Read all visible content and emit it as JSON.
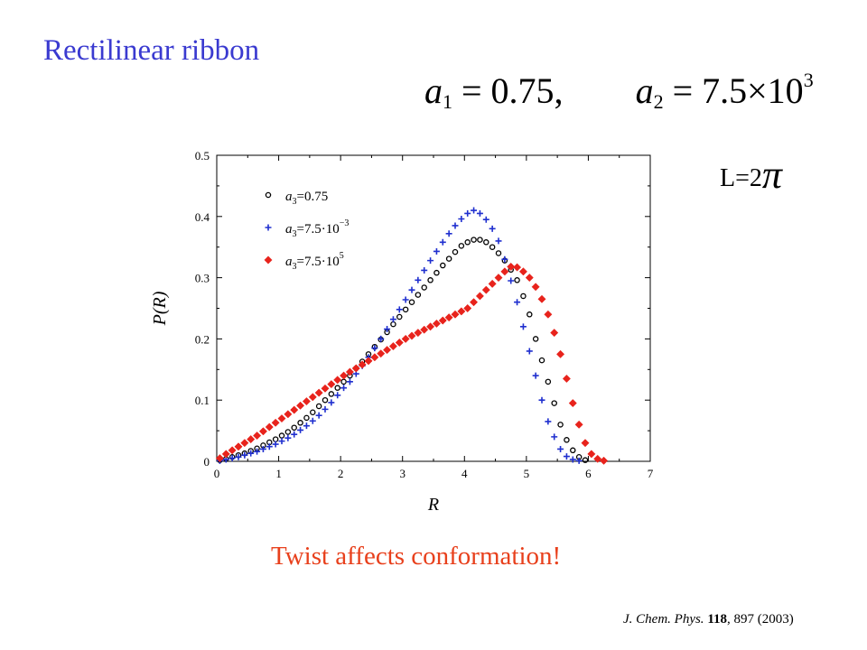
{
  "slide": {
    "title": "Rectilinear ribbon",
    "params": {
      "a1_symbol": "a",
      "a1_sub": "1",
      "a1_value": "= 0.75,",
      "a2_symbol": "a",
      "a2_sub": "2",
      "a2_value": "= 7.5×10",
      "a2_exp": "3"
    },
    "length_label": "L=2",
    "length_symbol": "π",
    "conclusion": "Twist affects conformation!",
    "citation": {
      "journal": "J. Chem. Phys.",
      "volume": "118",
      "rest": ", 897 (2003)"
    }
  },
  "chart_data": {
    "type": "scatter",
    "xlabel": "R",
    "ylabel": "P(R)",
    "xlim": [
      0,
      7
    ],
    "ylim": [
      0,
      0.5
    ],
    "xticks": [
      "0",
      "1",
      "2",
      "3",
      "4",
      "5",
      "6",
      "7"
    ],
    "yticks": [
      "0",
      "0.1",
      "0.2",
      "0.3",
      "0.4",
      "0.5"
    ],
    "legend_placement": "top-left",
    "series": [
      {
        "name": "a3=0.75",
        "legend": {
          "sym": "a",
          "sub": "3",
          "val": "=0.75",
          "exp": ""
        },
        "marker": "circle",
        "color": "#000000",
        "x": [
          0.05,
          0.15,
          0.25,
          0.35,
          0.45,
          0.55,
          0.65,
          0.75,
          0.85,
          0.95,
          1.05,
          1.15,
          1.25,
          1.35,
          1.45,
          1.55,
          1.65,
          1.75,
          1.85,
          1.95,
          2.05,
          2.15,
          2.25,
          2.35,
          2.45,
          2.55,
          2.65,
          2.75,
          2.85,
          2.95,
          3.05,
          3.15,
          3.25,
          3.35,
          3.45,
          3.55,
          3.65,
          3.75,
          3.85,
          3.95,
          4.05,
          4.15,
          4.25,
          4.35,
          4.45,
          4.55,
          4.65,
          4.75,
          4.85,
          4.95,
          5.05,
          5.15,
          5.25,
          5.35,
          5.45,
          5.55,
          5.65,
          5.75,
          5.85,
          5.95
        ],
        "y": [
          0.002,
          0.004,
          0.007,
          0.01,
          0.013,
          0.017,
          0.021,
          0.026,
          0.031,
          0.036,
          0.042,
          0.048,
          0.055,
          0.063,
          0.071,
          0.08,
          0.09,
          0.1,
          0.11,
          0.12,
          0.13,
          0.14,
          0.152,
          0.163,
          0.175,
          0.187,
          0.199,
          0.211,
          0.224,
          0.236,
          0.248,
          0.26,
          0.272,
          0.284,
          0.296,
          0.308,
          0.32,
          0.331,
          0.342,
          0.352,
          0.358,
          0.362,
          0.362,
          0.358,
          0.35,
          0.34,
          0.328,
          0.313,
          0.296,
          0.27,
          0.24,
          0.2,
          0.165,
          0.13,
          0.095,
          0.06,
          0.035,
          0.018,
          0.007,
          0.002
        ]
      },
      {
        "name": "a3=7.5·10^-3",
        "legend": {
          "sym": "a",
          "sub": "3",
          "val": "=7.5·10",
          "exp": "−3"
        },
        "marker": "plus",
        "color": "#1f2fcf",
        "x": [
          0.05,
          0.15,
          0.25,
          0.35,
          0.45,
          0.55,
          0.65,
          0.75,
          0.85,
          0.95,
          1.05,
          1.15,
          1.25,
          1.35,
          1.45,
          1.55,
          1.65,
          1.75,
          1.85,
          1.95,
          2.05,
          2.15,
          2.25,
          2.35,
          2.45,
          2.55,
          2.65,
          2.75,
          2.85,
          2.95,
          3.05,
          3.15,
          3.25,
          3.35,
          3.45,
          3.55,
          3.65,
          3.75,
          3.85,
          3.95,
          4.05,
          4.15,
          4.25,
          4.35,
          4.45,
          4.55,
          4.65,
          4.75,
          4.85,
          4.95,
          5.05,
          5.15,
          5.25,
          5.35,
          5.45,
          5.55,
          5.65,
          5.75,
          5.85
        ],
        "y": [
          0.001,
          0.003,
          0.005,
          0.007,
          0.01,
          0.013,
          0.016,
          0.02,
          0.024,
          0.028,
          0.033,
          0.038,
          0.044,
          0.051,
          0.058,
          0.066,
          0.075,
          0.085,
          0.096,
          0.108,
          0.12,
          0.13,
          0.143,
          0.156,
          0.17,
          0.185,
          0.2,
          0.216,
          0.232,
          0.248,
          0.264,
          0.28,
          0.296,
          0.312,
          0.328,
          0.343,
          0.358,
          0.372,
          0.385,
          0.396,
          0.405,
          0.41,
          0.405,
          0.395,
          0.38,
          0.36,
          0.33,
          0.295,
          0.26,
          0.22,
          0.18,
          0.14,
          0.1,
          0.065,
          0.04,
          0.02,
          0.008,
          0.003,
          0.001
        ]
      },
      {
        "name": "a3=7.5·10^5",
        "legend": {
          "sym": "a",
          "sub": "3",
          "val": "=7.5·10",
          "exp": "5"
        },
        "marker": "diamond",
        "color": "#e8231c",
        "x": [
          0.05,
          0.15,
          0.25,
          0.35,
          0.45,
          0.55,
          0.65,
          0.75,
          0.85,
          0.95,
          1.05,
          1.15,
          1.25,
          1.35,
          1.45,
          1.55,
          1.65,
          1.75,
          1.85,
          1.95,
          2.05,
          2.15,
          2.25,
          2.35,
          2.45,
          2.55,
          2.65,
          2.75,
          2.85,
          2.95,
          3.05,
          3.15,
          3.25,
          3.35,
          3.45,
          3.55,
          3.65,
          3.75,
          3.85,
          3.95,
          4.05,
          4.15,
          4.25,
          4.35,
          4.45,
          4.55,
          4.65,
          4.75,
          4.85,
          4.95,
          5.05,
          5.15,
          5.25,
          5.35,
          5.45,
          5.55,
          5.65,
          5.75,
          5.85,
          5.95,
          6.05,
          6.15,
          6.25
        ],
        "y": [
          0.005,
          0.012,
          0.018,
          0.024,
          0.03,
          0.036,
          0.042,
          0.049,
          0.056,
          0.063,
          0.07,
          0.077,
          0.084,
          0.091,
          0.098,
          0.105,
          0.112,
          0.119,
          0.126,
          0.133,
          0.14,
          0.146,
          0.152,
          0.158,
          0.164,
          0.17,
          0.176,
          0.182,
          0.188,
          0.194,
          0.2,
          0.205,
          0.21,
          0.215,
          0.22,
          0.225,
          0.23,
          0.235,
          0.24,
          0.245,
          0.25,
          0.26,
          0.27,
          0.28,
          0.29,
          0.3,
          0.31,
          0.318,
          0.317,
          0.31,
          0.3,
          0.285,
          0.265,
          0.24,
          0.21,
          0.175,
          0.135,
          0.095,
          0.06,
          0.03,
          0.012,
          0.004,
          0.001
        ]
      }
    ]
  }
}
